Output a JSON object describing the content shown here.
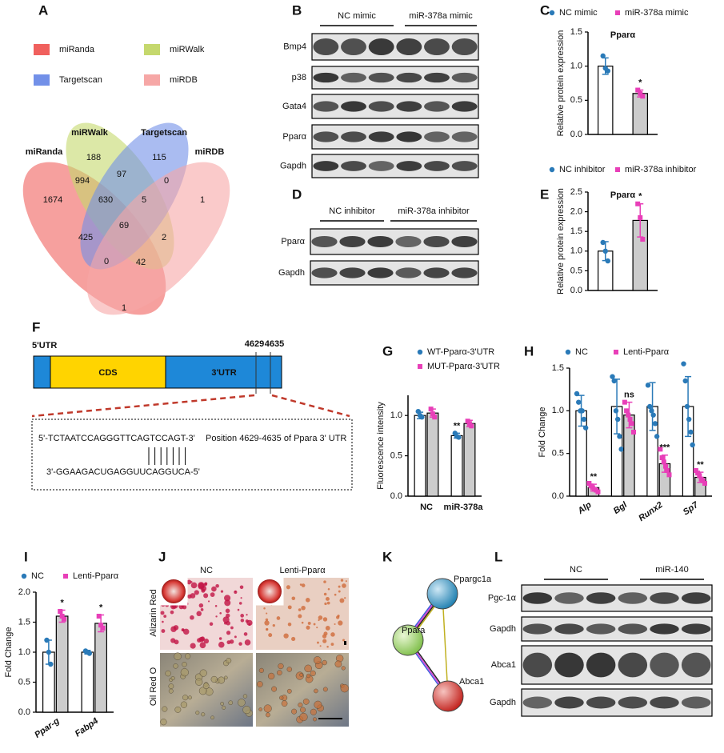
{
  "A": {
    "panel": "A",
    "legend": [
      {
        "name": "miRanda",
        "color": "#f0605d"
      },
      {
        "name": "miRWalk",
        "color": "#c5d86d"
      },
      {
        "name": "Targetscan",
        "color": "#7290e8"
      },
      {
        "name": "miRDB",
        "color": "#f6a7a6"
      }
    ],
    "set_labels": [
      "miRanda",
      "miRWalk",
      "Targetscan",
      "miRDB"
    ],
    "regions": [
      188,
      97,
      115,
      1674,
      994,
      630,
      5,
      0,
      1,
      425,
      69,
      2,
      0,
      42,
      1
    ]
  },
  "B": {
    "panel": "B",
    "groups": [
      "NC mimic",
      "miR-378a mimic"
    ],
    "rows": [
      "Bmp4",
      "p38",
      "Gata4",
      "Pparα",
      "Gapdh"
    ]
  },
  "D": {
    "panel": "D",
    "groups": [
      "NC inhibitor",
      "miR-378a inhibitor"
    ],
    "rows": [
      "Pparα",
      "Gapdh"
    ]
  },
  "F": {
    "panel": "F",
    "segments": [
      "5'UTR",
      "CDS",
      "3'UTR"
    ],
    "positions": [
      4629,
      4635
    ],
    "sequence_top": "5'-TCTAATCCAGGGTTCAGTCCAGT-3'",
    "note": "Position 4629-4635 of Ppara 3' UTR",
    "sequence_bottom": "3'-GGAAGACUGAGGUUCAGGUCA-5'"
  },
  "J": {
    "panel": "J",
    "columns": [
      "NC",
      "Lenti-Pparα"
    ],
    "rows": [
      "Alizarin Red",
      "Oil Red O"
    ]
  },
  "K": {
    "panel": "K",
    "nodes": [
      "Ppargc1a",
      "Ppara",
      "Abca1"
    ]
  },
  "L": {
    "panel": "L",
    "groups": [
      "NC",
      "miR-140"
    ],
    "rows": [
      "Pgc-1α",
      "Gapdh",
      "Abca1",
      "Gapdh"
    ]
  },
  "chart_data": [
    {
      "panel": "C",
      "type": "bar",
      "title": "Pparα",
      "y_label": "Relative protein expression",
      "ylim": [
        0,
        1.5
      ],
      "yticks": [
        {
          "value": 0,
          "label": "0.0"
        },
        {
          "value": 0.5,
          "label": "0.5"
        },
        {
          "value": 1,
          "label": "1.0"
        },
        {
          "value": 1.5,
          "label": "1.5"
        }
      ],
      "series": [
        {
          "name": "NC mimic",
          "color": "#2a7ab8",
          "bar_color": "#ffffff",
          "marker": "circle",
          "values": [
            1.0
          ],
          "errors": [
            0.12
          ],
          "points": [
            [
              1.15,
              0.97,
              0.93
            ]
          ],
          "annotations": [
            null
          ]
        },
        {
          "name": "miR-378a mimic",
          "color": "#e83fb8",
          "bar_color": "#cccccc",
          "marker": "square",
          "values": [
            0.6
          ],
          "errors": [
            0.05
          ],
          "points": [
            [
              0.65,
              0.6,
              0.56
            ]
          ],
          "annotations": [
            "*"
          ]
        }
      ]
    },
    {
      "panel": "E",
      "type": "bar",
      "title": "Pparα",
      "y_label": "Relative protein expression",
      "ylim": [
        0,
        2.5
      ],
      "yticks": [
        {
          "value": 0,
          "label": "0.0"
        },
        {
          "value": 0.5,
          "label": "0.5"
        },
        {
          "value": 1,
          "label": "1.0"
        },
        {
          "value": 1.5,
          "label": "1.5"
        },
        {
          "value": 2,
          "label": "2.0"
        },
        {
          "value": 2.5,
          "label": "2.5"
        }
      ],
      "series": [
        {
          "name": "NC inhibitor",
          "color": "#2a7ab8",
          "bar_color": "#ffffff",
          "marker": "circle",
          "values": [
            1.0
          ],
          "errors": [
            0.24
          ],
          "points": [
            [
              1.22,
              1.0,
              0.75
            ]
          ],
          "annotations": [
            null
          ]
        },
        {
          "name": "miR-378a inhibitor",
          "color": "#e83fb8",
          "bar_color": "#cccccc",
          "marker": "square",
          "values": [
            1.78
          ],
          "errors": [
            0.42
          ],
          "points": [
            [
              2.2,
              1.85,
              1.3
            ]
          ],
          "annotations": [
            "*"
          ]
        }
      ]
    },
    {
      "panel": "G",
      "type": "bar",
      "y_label": "Fluorescence intensity",
      "categories": [
        "NC",
        "miR-378a"
      ],
      "ylim": [
        0,
        1.25
      ],
      "yticks": [
        {
          "value": 0,
          "label": "0.0"
        },
        {
          "value": 0.5,
          "label": "0.5"
        },
        {
          "value": 1,
          "label": "1.0"
        }
      ],
      "series": [
        {
          "name": "WT-Pparα-3'UTR",
          "color": "#2a7ab8",
          "bar_color": "#ffffff",
          "marker": "circle",
          "values": [
            1.0,
            0.75
          ],
          "errors": [
            0.04,
            0.03
          ],
          "points": [
            [
              1.05,
              1.0,
              0.98
            ],
            [
              0.78,
              0.74,
              0.73
            ]
          ],
          "annotations": [
            null,
            "**"
          ]
        },
        {
          "name": "MUT-Pparα-3'UTR",
          "color": "#e83fb8",
          "bar_color": "#cccccc",
          "marker": "square",
          "values": [
            1.03,
            0.9
          ],
          "errors": [
            0.05,
            0.04
          ],
          "points": [
            [
              1.08,
              1.02,
              0.98
            ],
            [
              0.93,
              0.9,
              0.87
            ]
          ],
          "annotations": [
            null,
            null
          ]
        }
      ]
    },
    {
      "panel": "H",
      "type": "bar",
      "y_label": "Fold Change",
      "categories": [
        "Alp",
        "Bgl",
        "Runx2",
        "Sp7"
      ],
      "ylim": [
        0,
        1.5
      ],
      "yticks": [
        {
          "value": 0,
          "label": "0.0"
        },
        {
          "value": 0.5,
          "label": "0.5"
        },
        {
          "value": 1,
          "label": "1.0"
        },
        {
          "value": 1.5,
          "label": "1.5"
        }
      ],
      "series": [
        {
          "name": "NC",
          "color": "#2a7ab8",
          "bar_color": "#ffffff",
          "marker": "circle",
          "values": [
            1.0,
            1.05,
            1.05,
            1.05
          ],
          "errors": [
            0.18,
            0.32,
            0.28,
            0.35
          ],
          "points": [
            [
              1.2,
              1.1,
              1.0,
              1.0,
              0.9,
              0.8
            ],
            [
              1.4,
              1.35,
              1.0,
              0.9,
              0.7,
              0.55
            ],
            [
              1.3,
              1.05,
              1.0,
              0.95,
              0.85,
              0.7
            ],
            [
              1.55,
              1.35,
              1.05,
              0.9,
              0.75,
              0.6
            ]
          ],
          "annotations": [
            null,
            null,
            null,
            null
          ]
        },
        {
          "name": "Lenti-Pparα",
          "color": "#e83fb8",
          "bar_color": "#cccccc",
          "marker": "square",
          "values": [
            0.1,
            0.95,
            0.38,
            0.22
          ],
          "errors": [
            0.04,
            0.15,
            0.1,
            0.06
          ],
          "points": [
            [
              0.15,
              0.12,
              0.1,
              0.08,
              0.07,
              0.05
            ],
            [
              1.1,
              1.0,
              0.95,
              0.9,
              0.85,
              0.75
            ],
            [
              0.55,
              0.45,
              0.4,
              0.35,
              0.3,
              0.25
            ],
            [
              0.3,
              0.27,
              0.24,
              0.2,
              0.18,
              0.15
            ]
          ],
          "annotations": [
            "**",
            "ns",
            "***",
            "**"
          ]
        }
      ]
    },
    {
      "panel": "I",
      "type": "bar",
      "y_label": "Fold Change",
      "categories": [
        "Ppar-g",
        "Fabp4"
      ],
      "ylim": [
        0,
        2
      ],
      "yticks": [
        {
          "value": 0,
          "label": "0.0"
        },
        {
          "value": 0.5,
          "label": "0.5"
        },
        {
          "value": 1,
          "label": "1.0"
        },
        {
          "value": 1.5,
          "label": "1.5"
        },
        {
          "value": 2,
          "label": "2.0"
        }
      ],
      "series": [
        {
          "name": "NC",
          "color": "#2a7ab8",
          "bar_color": "#ffffff",
          "marker": "circle",
          "values": [
            1.0,
            1.0
          ],
          "errors": [
            0.2,
            0.03
          ],
          "points": [
            [
              1.2,
              1.0,
              0.8
            ],
            [
              1.02,
              1.0,
              0.98
            ]
          ],
          "annotations": [
            null,
            null
          ]
        },
        {
          "name": "Lenti-Pparα",
          "color": "#e83fb8",
          "bar_color": "#cccccc",
          "marker": "square",
          "values": [
            1.6,
            1.48
          ],
          "errors": [
            0.1,
            0.14
          ],
          "points": [
            [
              1.68,
              1.6,
              1.55
            ],
            [
              1.6,
              1.45,
              1.4
            ]
          ],
          "annotations": [
            "*",
            "*"
          ]
        }
      ]
    }
  ]
}
